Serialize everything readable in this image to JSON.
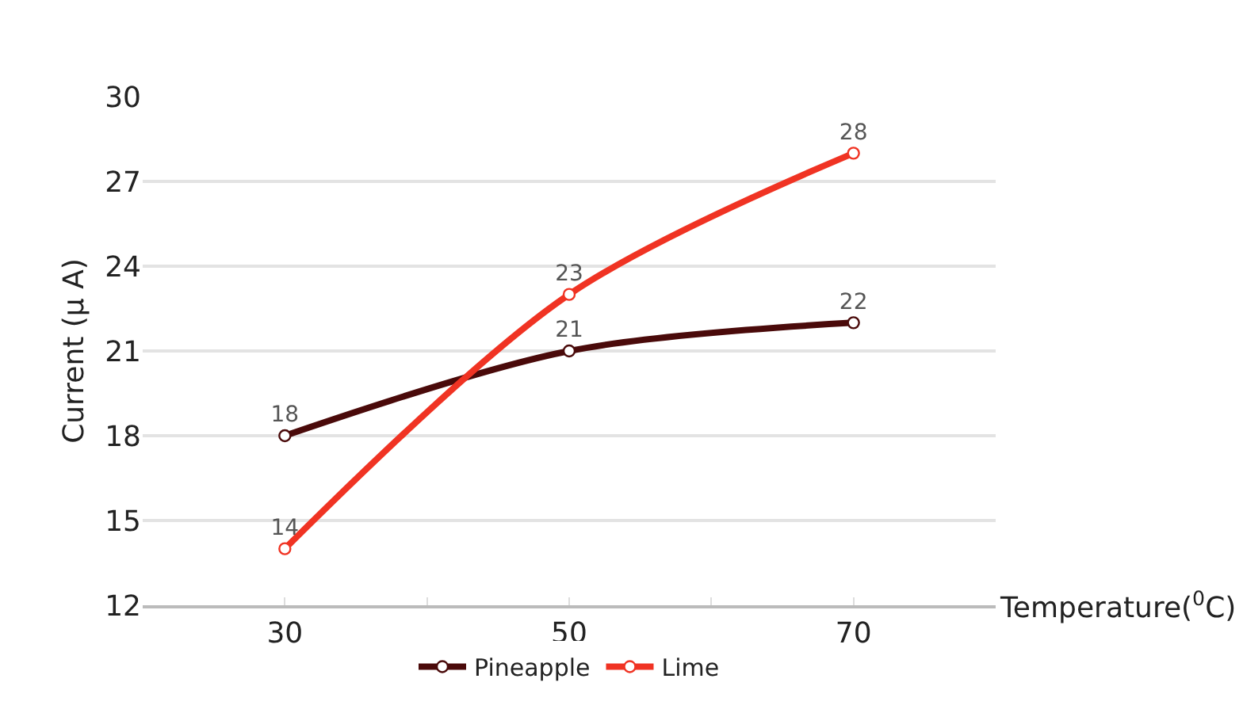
{
  "chart_data": {
    "type": "line",
    "xlabel": "Temperature($^{0}$C)",
    "ylabel": "Current (µ A)",
    "x": [
      30,
      50,
      70
    ],
    "series": [
      {
        "name": "Pineapple",
        "color": "#4a0a0a",
        "values": [
          18,
          21,
          22
        ]
      },
      {
        "name": "Lime",
        "color": "#f03323",
        "values": [
          14,
          23,
          28
        ]
      }
    ],
    "xlim": [
      20,
      80
    ],
    "xticks": [
      30,
      {
        "value": 40,
        "label": null
      },
      50,
      {
        "value": 60,
        "label": null
      },
      70
    ],
    "ylim": [
      12,
      30
    ],
    "yticks": [
      12,
      15,
      18,
      21,
      24,
      27,
      30
    ],
    "grid": "y",
    "legend": "bottom",
    "marker": "circle",
    "line_style": "solid",
    "data_labels": true
  }
}
